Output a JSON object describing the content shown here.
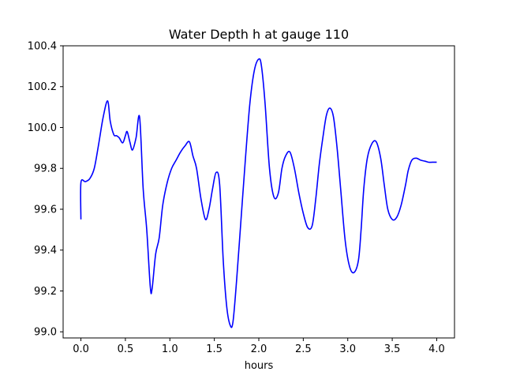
{
  "chart_data": {
    "type": "line",
    "title": "Water Depth h at gauge 110",
    "xlabel": "hours",
    "ylabel": "",
    "xlim": [
      -0.2,
      4.2
    ],
    "ylim": [
      98.97,
      100.4
    ],
    "xticks": [
      0.0,
      0.5,
      1.0,
      1.5,
      2.0,
      2.5,
      3.0,
      3.5,
      4.0
    ],
    "xtick_labels": [
      "0.0",
      "0.5",
      "1.0",
      "1.5",
      "2.0",
      "2.5",
      "3.0",
      "3.5",
      "4.0"
    ],
    "yticks": [
      99.0,
      99.2,
      99.4,
      99.6,
      99.8,
      100.0,
      100.2,
      100.4
    ],
    "ytick_labels": [
      "99.0",
      "99.2",
      "99.4",
      "99.6",
      "99.8",
      "100.0",
      "100.2",
      "100.4"
    ],
    "grid": false,
    "series": [
      {
        "color": "#0000ff",
        "x": [
          0.0,
          0.0,
          0.05,
          0.1,
          0.15,
          0.2,
          0.25,
          0.3,
          0.33,
          0.37,
          0.4,
          0.43,
          0.47,
          0.5,
          0.52,
          0.55,
          0.58,
          0.62,
          0.66,
          0.7,
          0.74,
          0.78,
          0.8,
          0.84,
          0.88,
          0.92,
          0.97,
          1.02,
          1.07,
          1.12,
          1.17,
          1.22,
          1.26,
          1.3,
          1.35,
          1.4,
          1.44,
          1.48,
          1.52,
          1.56,
          1.6,
          1.64,
          1.68,
          1.71,
          1.75,
          1.8,
          1.85,
          1.9,
          1.95,
          2.0,
          2.03,
          2.07,
          2.12,
          2.17,
          2.22,
          2.26,
          2.3,
          2.35,
          2.4,
          2.45,
          2.5,
          2.55,
          2.6,
          2.64,
          2.68,
          2.72,
          2.76,
          2.8,
          2.84,
          2.88,
          2.92,
          2.97,
          3.02,
          3.07,
          3.12,
          3.15,
          3.18,
          3.22,
          3.27,
          3.32,
          3.37,
          3.41,
          3.45,
          3.5,
          3.55,
          3.6,
          3.65,
          3.68,
          3.72,
          3.77,
          3.82,
          3.87,
          3.91,
          3.95,
          4.0
        ],
        "y": [
          99.55,
          99.73,
          99.735,
          99.75,
          99.8,
          99.92,
          100.05,
          100.13,
          100.03,
          99.965,
          99.96,
          99.95,
          99.925,
          99.96,
          99.98,
          99.93,
          99.89,
          99.95,
          100.05,
          99.7,
          99.5,
          99.22,
          99.21,
          99.38,
          99.46,
          99.62,
          99.73,
          99.8,
          99.84,
          99.88,
          99.91,
          99.93,
          99.86,
          99.8,
          99.65,
          99.55,
          99.6,
          99.7,
          99.78,
          99.72,
          99.35,
          99.12,
          99.03,
          99.05,
          99.25,
          99.55,
          99.85,
          100.12,
          100.28,
          100.335,
          100.3,
          100.12,
          99.8,
          99.66,
          99.68,
          99.8,
          99.86,
          99.88,
          99.8,
          99.68,
          99.58,
          99.51,
          99.52,
          99.65,
          99.82,
          99.95,
          100.06,
          100.095,
          100.05,
          99.9,
          99.7,
          99.45,
          99.32,
          99.29,
          99.35,
          99.5,
          99.7,
          99.85,
          99.92,
          99.93,
          99.85,
          99.72,
          99.6,
          99.55,
          99.56,
          99.62,
          99.72,
          99.79,
          99.84,
          99.85,
          99.84,
          99.835,
          99.83,
          99.83,
          99.83
        ]
      }
    ]
  }
}
